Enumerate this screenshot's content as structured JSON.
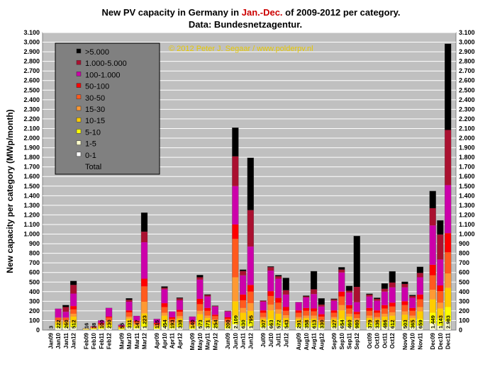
{
  "chart_data": {
    "type": "bar",
    "stacked": true,
    "title_parts": [
      {
        "text": "New PV capacity in Germany in ",
        "color": "#000000"
      },
      {
        "text": "Jan.-Dec.",
        "color": "#cc0000"
      },
      {
        "text": " of 2009-2012 per category.",
        "color": "#000000"
      }
    ],
    "subtitle": "Data: Bundesnetzagentur.",
    "credit": "© 2012 Peter J. Segaar / www.polderpv.nl",
    "credit_color": "#e6c800",
    "ylabel": "New capacity per category (MWp/month)",
    "ylim": [
      0,
      3100
    ],
    "yticks": [
      0,
      100,
      200,
      300,
      400,
      500,
      600,
      700,
      800,
      900,
      1000,
      1100,
      1200,
      1300,
      1400,
      1500,
      1600,
      1700,
      1800,
      1900,
      2000,
      2100,
      2200,
      2300,
      2400,
      2500,
      2600,
      2700,
      2800,
      2900,
      3000,
      3100
    ],
    "ytick_labels": [
      "0",
      "100",
      "200",
      "300",
      "400",
      "500",
      "600",
      "700",
      "800",
      "900",
      "1.000",
      "1.100",
      "1.200",
      "1.300",
      "1.400",
      "1.500",
      "1.600",
      "1.700",
      "1.800",
      "1.900",
      "2.000",
      "2.100",
      "2.200",
      "2.300",
      "2.400",
      "2.500",
      "2.600",
      "2.700",
      "2.800",
      "2.900",
      "3.000",
      "3.100"
    ],
    "plot_background": "#c0c0c0",
    "grid": true,
    "legend_position": "top-left",
    "legend": [
      {
        "name": ">5.000",
        "color": "#000000"
      },
      {
        "name": "1.000-5.000",
        "color": "#aa1030"
      },
      {
        "name": "100-1.000",
        "color": "#cc00aa"
      },
      {
        "name": "50-100",
        "color": "#ff0000"
      },
      {
        "name": "30-50",
        "color": "#ff5a1e"
      },
      {
        "name": "15-30",
        "color": "#ff9933"
      },
      {
        "name": "10-15",
        "color": "#ffcc00"
      },
      {
        "name": "5-10",
        "color": "#ffff00"
      },
      {
        "name": "1-5",
        "color": "#ffffcc"
      },
      {
        "name": "0-1",
        "color": "#ffffff"
      },
      {
        "name": "Total",
        "color": ""
      }
    ],
    "months": [
      {
        "bars": [
          {
            "label": "Jan09",
            "total": 3,
            "total_label": "3",
            "stack": [
              3,
              0,
              0,
              0,
              0,
              0,
              0,
              0,
              0,
              0
            ]
          },
          {
            "label": "Jan10",
            "total": 222,
            "total_label": "222",
            "stack": [
              5,
              20,
              30,
              30,
              15,
              30,
              0,
              92,
              0,
              0
            ]
          },
          {
            "label": "Jan11",
            "total": 260,
            "total_label": "260",
            "stack": [
              5,
              20,
              30,
              30,
              15,
              30,
              0,
              60,
              50,
              20
            ]
          },
          {
            "label": "Jan12",
            "total": 512,
            "total_label": "512",
            "stack": [
              5,
              25,
              45,
              65,
              30,
              45,
              35,
              130,
              90,
              42
            ]
          }
        ]
      },
      {
        "bars": [
          {
            "label": "Feb09",
            "total": 16,
            "total_label": "16",
            "stack": [
              2,
              4,
              4,
              3,
              1,
              2,
              0,
              0,
              0,
              0
            ]
          },
          {
            "label": "Feb10",
            "total": 38,
            "total_label": "38",
            "stack": [
              3,
              5,
              6,
              6,
              4,
              6,
              4,
              4,
              0,
              0
            ]
          },
          {
            "label": "Feb11",
            "total": 100,
            "total_label": "100",
            "stack": [
              3,
              10,
              15,
              15,
              7,
              15,
              10,
              25,
              0,
              0
            ]
          },
          {
            "label": "Feb12",
            "total": 230,
            "total_label": "230",
            "stack": [
              5,
              20,
              30,
              30,
              15,
              30,
              10,
              90,
              0,
              0
            ]
          }
        ]
      },
      {
        "bars": [
          {
            "label": "Mar09",
            "total": 55,
            "total_label": "55",
            "stack": [
              2,
              5,
              8,
              10,
              5,
              10,
              5,
              10,
              0,
              0
            ]
          },
          {
            "label": "Mar10",
            "total": 331,
            "total_label": "331",
            "stack": [
              5,
              25,
              45,
              45,
              20,
              45,
              20,
              90,
              20,
              16
            ]
          },
          {
            "label": "Mar11",
            "total": 147,
            "total_label": "147",
            "stack": [
              3,
              15,
              20,
              20,
              10,
              20,
              10,
              49,
              0,
              0
            ]
          },
          {
            "label": "Mar12",
            "total": 1223,
            "total_label": "1.223",
            "stack": [
              5,
              30,
              50,
              90,
              120,
              160,
              80,
              380,
              110,
              198
            ]
          }
        ]
      },
      {
        "bars": [
          {
            "label": "Apr09",
            "total": 115,
            "total_label": "115",
            "stack": [
              3,
              10,
              15,
              15,
              7,
              15,
              10,
              40,
              0,
              0
            ]
          },
          {
            "label": "Apr10",
            "total": 454,
            "total_label": "454",
            "stack": [
              5,
              30,
              55,
              60,
              30,
              60,
              40,
              145,
              15,
              14
            ]
          },
          {
            "label": "Apr11",
            "total": 193,
            "total_label": "193",
            "stack": [
              3,
              15,
              25,
              30,
              15,
              30,
              15,
              60,
              0,
              0
            ]
          },
          {
            "label": "Apr12",
            "total": 338,
            "total_label": "338",
            "stack": [
              5,
              25,
              45,
              45,
              25,
              45,
              20,
              100,
              20,
              8
            ]
          }
        ]
      },
      {
        "bars": [
          {
            "label": "May09",
            "total": 140,
            "total_label": "140",
            "stack": [
              3,
              10,
              20,
              20,
              10,
              20,
              10,
              47,
              0,
              0
            ]
          },
          {
            "label": "May10",
            "total": 573,
            "total_label": "573",
            "stack": [
              5,
              35,
              60,
              65,
              35,
              70,
              55,
              200,
              25,
              23
            ]
          },
          {
            "label": "May11",
            "total": 371,
            "total_label": "371",
            "stack": [
              5,
              25,
              45,
              50,
              25,
              50,
              30,
              120,
              15,
              6
            ]
          },
          {
            "label": "May12",
            "total": 254,
            "total_label": "254",
            "stack": [
              5,
              20,
              35,
              35,
              15,
              35,
              15,
              85,
              5,
              4
            ]
          }
        ]
      },
      {
        "bars": [
          {
            "label": "Jun09",
            "total": 200,
            "total_label": "200",
            "stack": [
              3,
              15,
              25,
              30,
              15,
              30,
              15,
              60,
              5,
              2
            ]
          },
          {
            "label": "Jun10",
            "total": 2109,
            "total_label": "2.109",
            "stack": [
              10,
              50,
              90,
              150,
              250,
              400,
              150,
              400,
              310,
              299
            ]
          },
          {
            "label": "Jun11",
            "total": 630,
            "total_label": "630",
            "stack": [
              5,
              35,
              60,
              80,
              50,
              80,
              60,
              200,
              45,
              15
            ]
          },
          {
            "label": "Jun12",
            "total": 1795,
            "total_label": "1.795",
            "stack": [
              5,
              35,
              60,
              100,
              80,
              120,
              70,
              400,
              380,
              545
            ]
          }
        ]
      },
      {
        "bars": [
          {
            "label": "Jul09",
            "total": 307,
            "total_label": "307",
            "stack": [
              5,
              25,
              40,
              45,
              20,
              45,
              25,
              90,
              10,
              2
            ]
          },
          {
            "label": "Jul10",
            "total": 663,
            "total_label": "663",
            "stack": [
              5,
              40,
              70,
              90,
              60,
              90,
              50,
              215,
              35,
              8
            ]
          },
          {
            "label": "Jul11",
            "total": 572,
            "total_label": "572",
            "stack": [
              5,
              35,
              60,
              70,
              45,
              70,
              50,
              200,
              25,
              12
            ]
          },
          {
            "label": "Jul12",
            "total": 543,
            "total_label": "543",
            "stack": [
              5,
              25,
              45,
              50,
              30,
              45,
              40,
              130,
              45,
              128
            ]
          }
        ]
      },
      {
        "bars": [
          {
            "label": "Aug09",
            "total": 291,
            "total_label": "291",
            "stack": [
              5,
              25,
              40,
              45,
              20,
              45,
              25,
              85,
              1,
              0
            ]
          },
          {
            "label": "Aug10",
            "total": 358,
            "total_label": "358",
            "stack": [
              5,
              25,
              45,
              50,
              25,
              50,
              30,
              110,
              10,
              8
            ]
          },
          {
            "label": "Aug11",
            "total": 613,
            "total_label": "613",
            "stack": [
              5,
              25,
              45,
              45,
              30,
              45,
              30,
              150,
              50,
              188
            ]
          },
          {
            "label": "Aug12",
            "total": 330,
            "total_label": "330",
            "stack": [
              5,
              20,
              30,
              30,
              20,
              35,
              25,
              80,
              20,
              65
            ]
          }
        ]
      },
      {
        "bars": [
          {
            "label": "Sep09",
            "total": 327,
            "total_label": "327",
            "stack": [
              5,
              25,
              40,
              45,
              20,
              45,
              25,
              100,
              15,
              7
            ]
          },
          {
            "label": "Sep10",
            "total": 654,
            "total_label": "654",
            "stack": [
              5,
              40,
              70,
              90,
              55,
              90,
              50,
              200,
              30,
              24
            ]
          },
          {
            "label": "Sep11",
            "total": 460,
            "total_label": "460",
            "stack": [
              5,
              30,
              50,
              55,
              30,
              55,
              35,
              130,
              20,
              50
            ]
          },
          {
            "label": "Sep12",
            "total": 980,
            "total_label": "980",
            "stack": [
              5,
              20,
              40,
              40,
              20,
              40,
              25,
              100,
              160,
              530
            ]
          }
        ]
      },
      {
        "bars": [
          {
            "label": "Oct09",
            "total": 379,
            "total_label": "379",
            "stack": [
              5,
              25,
              45,
              50,
              25,
              50,
              30,
              120,
              20,
              9
            ]
          },
          {
            "label": "Oct10",
            "total": 336,
            "total_label": "336",
            "stack": [
              5,
              25,
              40,
              45,
              20,
              45,
              25,
              100,
              20,
              11
            ]
          },
          {
            "label": "Oct11",
            "total": 486,
            "total_label": "486",
            "stack": [
              5,
              30,
              50,
              55,
              30,
              55,
              35,
              140,
              30,
              56
            ]
          },
          {
            "label": "Oct12",
            "total": 612,
            "total_label": "612",
            "stack": [
              5,
              30,
              55,
              60,
              35,
              60,
              40,
              160,
              50,
              117
            ]
          }
        ]
      },
      {
        "bars": [
          {
            "label": "Nov09",
            "total": 503,
            "total_label": "503",
            "stack": [
              5,
              35,
              55,
              65,
              35,
              65,
              40,
              145,
              35,
              23
            ]
          },
          {
            "label": "Nov10",
            "total": 365,
            "total_label": "365",
            "stack": [
              5,
              25,
              45,
              50,
              25,
              50,
              30,
              105,
              20,
              10
            ]
          },
          {
            "label": "Nov11",
            "total": 659,
            "total_label": "659",
            "stack": [
              5,
              40,
              70,
              80,
              45,
              80,
              50,
              180,
              45,
              64
            ]
          }
        ]
      },
      {
        "bars": [
          {
            "label": "Dec09",
            "total": 1449,
            "total_label": "1.449",
            "stack": [
              10,
              60,
              110,
              140,
              100,
              150,
              110,
              410,
              180,
              179
            ]
          },
          {
            "label": "Dec10",
            "total": 1143,
            "total_label": "1.143",
            "stack": [
              5,
              40,
              80,
              100,
              60,
              120,
              60,
              270,
              260,
              148
            ]
          },
          {
            "label": "Dec11",
            "total": 2983,
            "total_label": "2.983",
            "stack": [
              10,
              80,
              150,
              200,
              150,
              220,
              200,
              500,
              575,
              898
            ]
          }
        ]
      }
    ]
  }
}
